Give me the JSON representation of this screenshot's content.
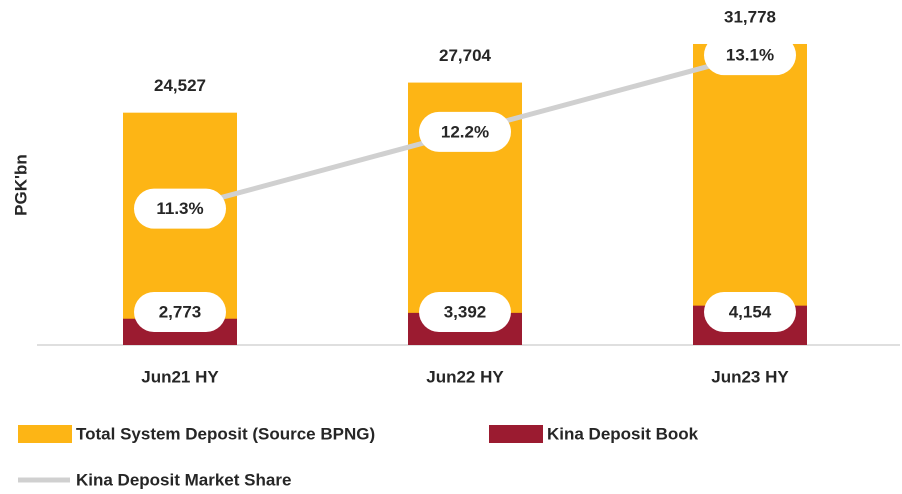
{
  "chart_data": {
    "type": "bar",
    "y_label": "PGK'bn",
    "categories": [
      "Jun21 HY",
      "Jun22 HY",
      "Jun23 HY"
    ],
    "series": [
      {
        "name": "Total System Deposit (Source BPNG)",
        "color": "#FDB515",
        "values": [
          24527,
          27704,
          31778
        ],
        "value_labels": [
          "24,527",
          "27,704",
          "31,778"
        ]
      },
      {
        "name": "Kina Deposit Book",
        "color": "#9B1B30",
        "values": [
          2773,
          3392,
          4154
        ],
        "value_labels": [
          "2,773",
          "3,392",
          "4,154"
        ]
      },
      {
        "name": "Kina Deposit Market Share",
        "type": "line",
        "axis": "y2",
        "color": "#D0D0D0",
        "values": [
          11.3,
          12.2,
          13.1
        ],
        "value_labels": [
          "11.3%",
          "12.2%",
          "13.1%"
        ]
      }
    ],
    "ylim": [
      0,
      36000
    ],
    "y2lim": [
      9.7,
      13.7
    ]
  }
}
